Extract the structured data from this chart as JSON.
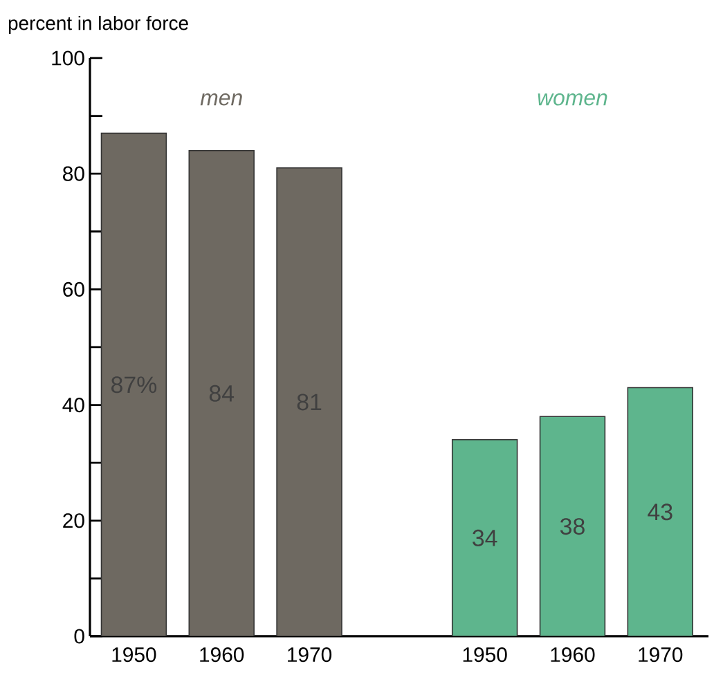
{
  "chart_data": {
    "type": "bar",
    "ylabel": "percent in labor force",
    "categories": [
      "1950",
      "1960",
      "1970",
      null,
      "1950",
      "1960",
      "1970"
    ],
    "series": [
      {
        "name": "men",
        "color": "#6e6961",
        "values": [
          87,
          84,
          81,
          null,
          null,
          null,
          null
        ],
        "value_labels": [
          "87%",
          "84",
          "81",
          null,
          null,
          null,
          null
        ]
      },
      {
        "name": "women",
        "color": "#5eb58d",
        "values": [
          null,
          null,
          null,
          null,
          34,
          38,
          43
        ],
        "value_labels": [
          null,
          null,
          null,
          null,
          "34",
          "38",
          "43"
        ]
      }
    ],
    "ylim": [
      0,
      100
    ],
    "yticks": [
      0,
      {
        "value": 10,
        "label": null
      },
      20,
      {
        "value": 30,
        "label": null
      },
      40,
      {
        "value": 50,
        "label": null
      },
      60,
      {
        "value": 70,
        "label": null
      },
      80,
      {
        "value": 90,
        "label": null
      },
      100
    ],
    "grid": false
  }
}
